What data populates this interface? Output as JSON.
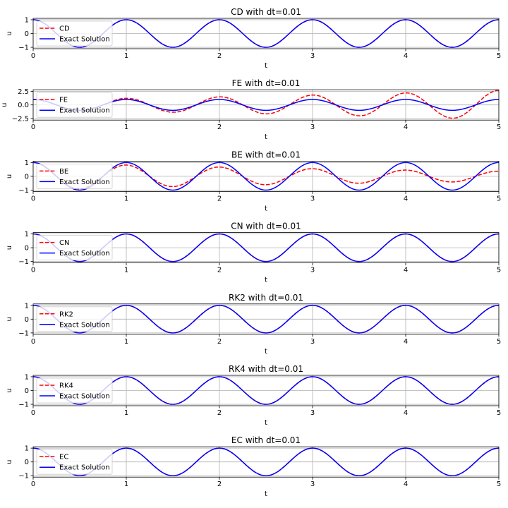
{
  "chart_data": [
    {
      "type": "line",
      "title": "CD with dt=0.01",
      "xlabel": "t",
      "ylabel": "u",
      "xlim": [
        0,
        5
      ],
      "ylim": [
        -1.1,
        1.1
      ],
      "xticks": [
        "0",
        "1",
        "2",
        "3",
        "4",
        "5"
      ],
      "yticks": [
        "1",
        "0",
        "−1"
      ],
      "ytick_values": [
        1,
        0,
        -1
      ],
      "grid": true,
      "legend": "upper-left",
      "series": [
        {
          "name": "CD",
          "style": "dashed",
          "color": "#ff0000",
          "amplitude_growth_per_period": 1.0
        },
        {
          "name": "Exact Solution",
          "style": "solid",
          "color": "#0000ff",
          "function": "cos(2*pi*t)"
        }
      ]
    },
    {
      "type": "line",
      "title": "FE with dt=0.01",
      "xlabel": "t",
      "ylabel": "u",
      "xlim": [
        0,
        5
      ],
      "ylim": [
        -2.8,
        2.8
      ],
      "xticks": [
        "0",
        "1",
        "2",
        "3",
        "4",
        "5"
      ],
      "yticks": [
        "2.5",
        "0.0",
        "−2.5"
      ],
      "ytick_values": [
        2.5,
        0,
        -2.5
      ],
      "grid": true,
      "legend": "upper-left",
      "series": [
        {
          "name": "FE",
          "style": "dashed",
          "color": "#ff0000",
          "amplitude_growth_per_period": 1.22
        },
        {
          "name": "Exact Solution",
          "style": "solid",
          "color": "#0000ff",
          "function": "cos(2*pi*t)"
        }
      ]
    },
    {
      "type": "line",
      "title": "BE with dt=0.01",
      "xlabel": "t",
      "ylabel": "u",
      "xlim": [
        0,
        5
      ],
      "ylim": [
        -1.1,
        1.1
      ],
      "xticks": [
        "0",
        "1",
        "2",
        "3",
        "4",
        "5"
      ],
      "yticks": [
        "1",
        "0",
        "−1"
      ],
      "ytick_values": [
        1,
        0,
        -1
      ],
      "grid": true,
      "legend": "upper-left",
      "series": [
        {
          "name": "BE",
          "style": "dashed",
          "color": "#ff0000",
          "amplitude_growth_per_period": 0.82
        },
        {
          "name": "Exact Solution",
          "style": "solid",
          "color": "#0000ff",
          "function": "cos(2*pi*t)"
        }
      ]
    },
    {
      "type": "line",
      "title": "CN with dt=0.01",
      "xlabel": "t",
      "ylabel": "u",
      "xlim": [
        0,
        5
      ],
      "ylim": [
        -1.1,
        1.1
      ],
      "xticks": [
        "0",
        "1",
        "2",
        "3",
        "4",
        "5"
      ],
      "yticks": [
        "1",
        "0",
        "−1"
      ],
      "ytick_values": [
        1,
        0,
        -1
      ],
      "grid": true,
      "legend": "upper-left",
      "series": [
        {
          "name": "CN",
          "style": "dashed",
          "color": "#ff0000",
          "amplitude_growth_per_period": 1.0
        },
        {
          "name": "Exact Solution",
          "style": "solid",
          "color": "#0000ff",
          "function": "cos(2*pi*t)"
        }
      ]
    },
    {
      "type": "line",
      "title": "RK2 with dt=0.01",
      "xlabel": "t",
      "ylabel": "u",
      "xlim": [
        0,
        5
      ],
      "ylim": [
        -1.1,
        1.1
      ],
      "xticks": [
        "0",
        "1",
        "2",
        "3",
        "4",
        "5"
      ],
      "yticks": [
        "1",
        "0",
        "−1"
      ],
      "ytick_values": [
        1,
        0,
        -1
      ],
      "grid": true,
      "legend": "upper-left",
      "series": [
        {
          "name": "RK2",
          "style": "dashed",
          "color": "#ff0000",
          "amplitude_growth_per_period": 1.0
        },
        {
          "name": "Exact Solution",
          "style": "solid",
          "color": "#0000ff",
          "function": "cos(2*pi*t)"
        }
      ]
    },
    {
      "type": "line",
      "title": "RK4 with dt=0.01",
      "xlabel": "t",
      "ylabel": "u",
      "xlim": [
        0,
        5
      ],
      "ylim": [
        -1.1,
        1.1
      ],
      "xticks": [
        "0",
        "1",
        "2",
        "3",
        "4",
        "5"
      ],
      "yticks": [
        "1",
        "0",
        "−1"
      ],
      "ytick_values": [
        1,
        0,
        -1
      ],
      "grid": true,
      "legend": "upper-left",
      "series": [
        {
          "name": "RK4",
          "style": "dashed",
          "color": "#ff0000",
          "amplitude_growth_per_period": 1.0
        },
        {
          "name": "Exact Solution",
          "style": "solid",
          "color": "#0000ff",
          "function": "cos(2*pi*t)"
        }
      ]
    },
    {
      "type": "line",
      "title": "EC with dt=0.01",
      "xlabel": "t",
      "ylabel": "u",
      "xlim": [
        0,
        5
      ],
      "ylim": [
        -1.1,
        1.1
      ],
      "xticks": [
        "0",
        "1",
        "2",
        "3",
        "4",
        "5"
      ],
      "yticks": [
        "1",
        "0",
        "−1"
      ],
      "ytick_values": [
        1,
        0,
        -1
      ],
      "grid": true,
      "legend": "upper-left",
      "series": [
        {
          "name": "EC",
          "style": "dashed",
          "color": "#ff0000",
          "amplitude_growth_per_period": 1.0
        },
        {
          "name": "Exact Solution",
          "style": "solid",
          "color": "#0000ff",
          "function": "cos(2*pi*t)"
        }
      ]
    }
  ]
}
